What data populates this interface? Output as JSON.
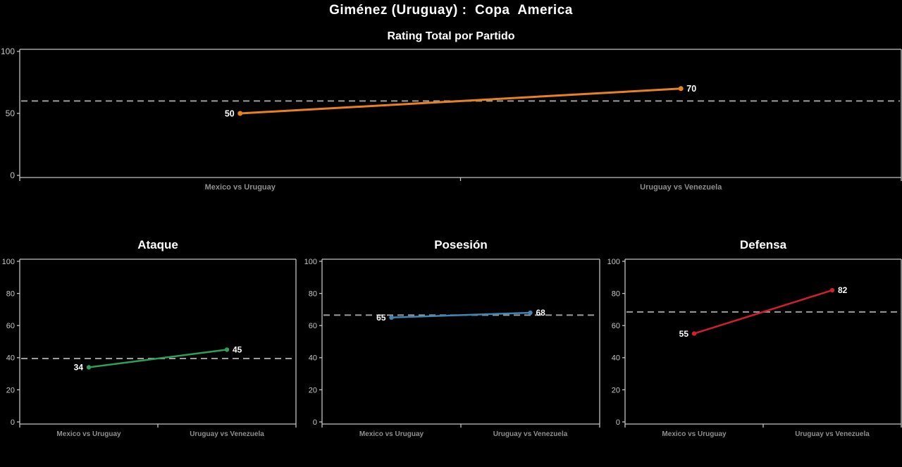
{
  "page": {
    "title": "Giménez (Uruguay) :  Copa  America",
    "background": "#000000"
  },
  "axis": {
    "categories": [
      "Mexico vs Uruguay",
      "Uruguay vs Venezuela"
    ],
    "ylim": [
      0,
      100
    ],
    "grid": false,
    "legend": "none"
  },
  "colors": {
    "axis_line": "#c2c2c2",
    "reference_line": "#9c9c9c",
    "y_tick_text": "#c6c6c6",
    "x_tick_text": "#8f8f8f",
    "value_label_text": "#ffffff"
  },
  "chart_data": [
    {
      "id": "rating-total",
      "type": "line",
      "title": "Rating Total por Partido",
      "categories": [
        "Mexico vs Uruguay",
        "Uruguay vs Venezuela"
      ],
      "values": [
        50,
        70
      ],
      "point_labels": [
        "50",
        "70"
      ],
      "color": "#e8821e",
      "reference_line": 60,
      "ylim": [
        0,
        100
      ],
      "yticks": [
        0,
        50,
        100
      ]
    },
    {
      "id": "ataque",
      "type": "line",
      "title": "Ataque",
      "categories": [
        "Mexico vs Uruguay",
        "Uruguay vs Venezuela"
      ],
      "values": [
        34,
        45
      ],
      "point_labels": [
        "34",
        "45"
      ],
      "color": "#2e9e5b",
      "reference_line": 39.5,
      "ylim": [
        0,
        100
      ],
      "yticks": [
        0,
        20,
        40,
        60,
        80,
        100
      ]
    },
    {
      "id": "posesion",
      "type": "line",
      "title": "Posesión",
      "categories": [
        "Mexico vs Uruguay",
        "Uruguay vs Venezuela"
      ],
      "values": [
        65,
        68
      ],
      "point_labels": [
        "65",
        "68"
      ],
      "color": "#3d86b8",
      "reference_line": 66.5,
      "ylim": [
        0,
        100
      ],
      "yticks": [
        0,
        20,
        40,
        60,
        80,
        100
      ]
    },
    {
      "id": "defensa",
      "type": "line",
      "title": "Defensa",
      "categories": [
        "Mexico vs Uruguay",
        "Uruguay vs Venezuela"
      ],
      "values": [
        55,
        82
      ],
      "point_labels": [
        "55",
        "82"
      ],
      "color": "#d01f2e",
      "reference_line": 68.5,
      "ylim": [
        0,
        100
      ],
      "yticks": [
        0,
        20,
        40,
        60,
        80,
        100
      ]
    }
  ]
}
